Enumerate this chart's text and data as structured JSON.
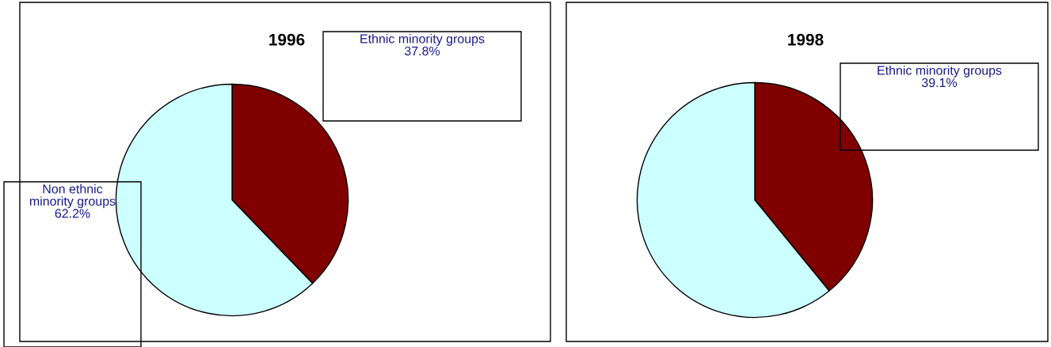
{
  "chart_data": [
    {
      "type": "pie",
      "title": "1996",
      "categories": [
        "Ethnic minority groups",
        "Non ethnic minority groups"
      ],
      "values": [
        37.8,
        62.2
      ],
      "colors": [
        "#800000",
        "#ccffff"
      ],
      "value_labels": [
        "37.8%",
        "62.2%"
      ]
    },
    {
      "type": "pie",
      "title": "1998",
      "categories": [
        "Ethnic minority groups",
        null
      ],
      "values": [
        39.1,
        60.9
      ],
      "colors": [
        "#800000",
        "#ccffff"
      ],
      "value_labels": [
        "39.1%",
        null
      ]
    }
  ]
}
